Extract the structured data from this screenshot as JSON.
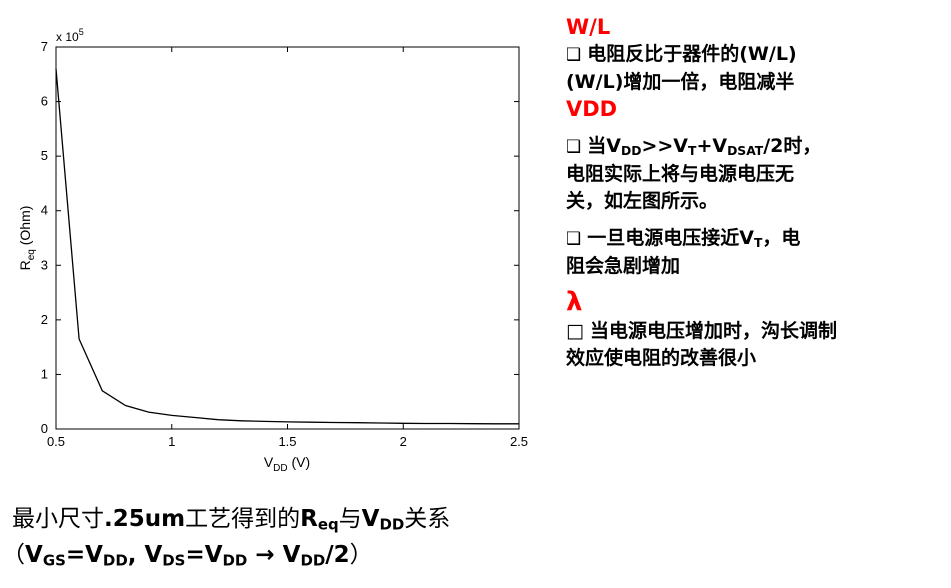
{
  "chart_data": {
    "type": "line",
    "xlabel_main": "V",
    "xlabel_sub": "DD",
    "xlabel_unit": " (V)",
    "ylabel_main": "R",
    "ylabel_sub": "eq",
    "ylabel_unit": " (Ohm)",
    "y_multiplier_base": "x 10",
    "y_multiplier_exp": "5",
    "xlim": [
      0.5,
      2.5
    ],
    "ylim": [
      0,
      7
    ],
    "x_ticks": [
      0.5,
      1,
      1.5,
      2,
      2.5
    ],
    "x_tick_labels": [
      "0.5",
      "1",
      "1.5",
      "2",
      "2.5"
    ],
    "y_ticks": [
      0,
      1,
      2,
      3,
      4,
      5,
      6,
      7
    ],
    "y_tick_labels": [
      "0",
      "1",
      "2",
      "3",
      "4",
      "5",
      "6",
      "7"
    ],
    "grid": false,
    "line_color": "#000000",
    "series": [
      {
        "x": [
          0.5,
          0.6,
          0.7,
          0.8,
          0.9,
          1.0,
          1.1,
          1.2,
          1.3,
          1.4,
          1.5,
          1.6,
          1.7,
          1.8,
          1.9,
          2.0,
          2.1,
          2.2,
          2.3,
          2.4,
          2.5
        ],
        "y": [
          6.6,
          1.65,
          0.7,
          0.43,
          0.31,
          0.25,
          0.21,
          0.17,
          0.15,
          0.14,
          0.13,
          0.125,
          0.12,
          0.115,
          0.11,
          0.105,
          0.1,
          0.1,
          0.098,
          0.096,
          0.095
        ]
      }
    ]
  },
  "right_panel": {
    "heading_wl": "W/L",
    "p1": "电阻反比于器件的(W/L)",
    "p2": "(W/L)增加一倍，电阻减半",
    "heading_vdd": "VDD",
    "p3_a": "当V",
    "p3_sub1": "DD",
    "p3_b": ">>V",
    "p3_sub2": "T",
    "p3_c": "+V",
    "p3_sub3": "DSAT",
    "p3_d": "/2时，",
    "p3_line2": "电阻实际上将与电源电压无",
    "p3_line3": "关，如左图所示。",
    "p4_a": "一旦电源电压接近V",
    "p4_sub": "T",
    "p4_b": "，电",
    "p4_line2": "阻会急剧增加",
    "heading_lambda": "λ",
    "p5_line1": "当电源电压增加时，沟长调制",
    "p5_line2": "效应使电阻的改善很小",
    "bullet_box": "❑",
    "bullet_box_plain": "□"
  },
  "caption": {
    "l1_a": "最小尺寸",
    "l1_b": ".25um",
    "l1_c": "工艺得到的",
    "l1_d": "R",
    "l1_sub_eq": "eq",
    "l1_e": "与",
    "l1_f": "V",
    "l1_sub_dd": "DD",
    "l1_g": "关系",
    "l2_open": "（",
    "l2_a": "V",
    "l2_sub_gs": "GS",
    "l2_b": "=V",
    "l2_sub_dd1": "DD",
    "l2_c": ", V",
    "l2_sub_ds": "DS",
    "l2_d": "=V",
    "l2_sub_dd2": "DD",
    "l2_arrow": " → ",
    "l2_e": "V",
    "l2_sub_dd3": "DD",
    "l2_f": "/2",
    "l2_close": "）"
  },
  "colors": {
    "heading": "#ff0000",
    "text": "#000000"
  }
}
